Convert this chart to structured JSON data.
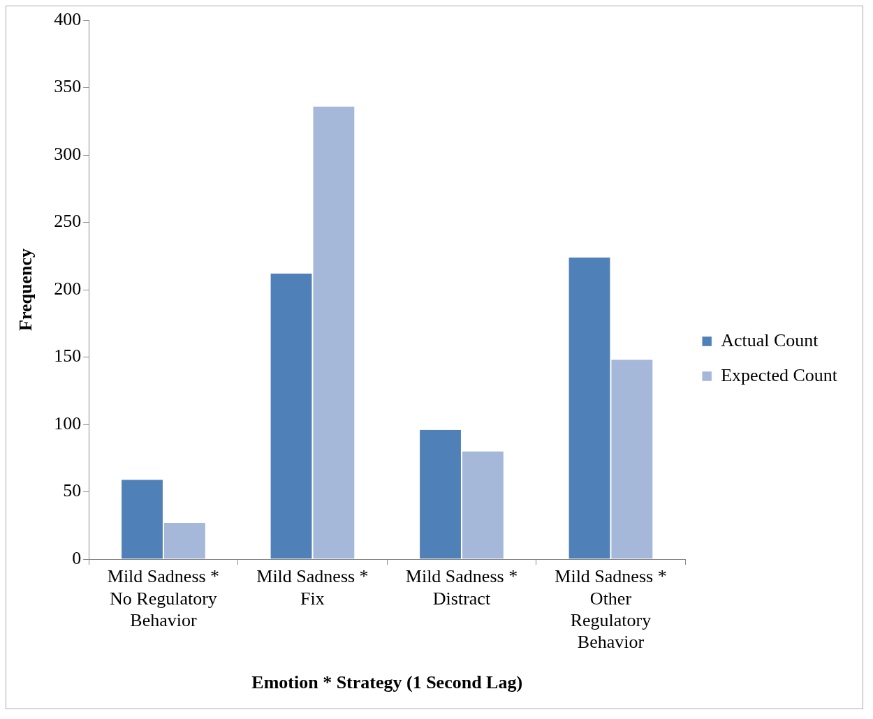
{
  "chart_data": {
    "type": "bar",
    "xlabel": "Emotion * Strategy (1 Second Lag)",
    "ylabel": "Frequency",
    "categories": [
      "Mild Sadness * No Regulatory Behavior",
      "Mild Sadness * Fix",
      "Mild Sadness * Distract",
      "Mild Sadness * Other Regulatory Behavior"
    ],
    "series": [
      {
        "name": "Actual Count",
        "color": "#4f81b8",
        "values": [
          59,
          212,
          96,
          224
        ]
      },
      {
        "name": "Expected Count",
        "color": "#a5b8d9",
        "values": [
          27,
          336,
          80,
          148
        ]
      }
    ],
    "ylim": [
      0,
      400
    ],
    "yticks": [
      0,
      50,
      100,
      150,
      200,
      250,
      300,
      350,
      400
    ],
    "grid": false,
    "legend": "right"
  }
}
